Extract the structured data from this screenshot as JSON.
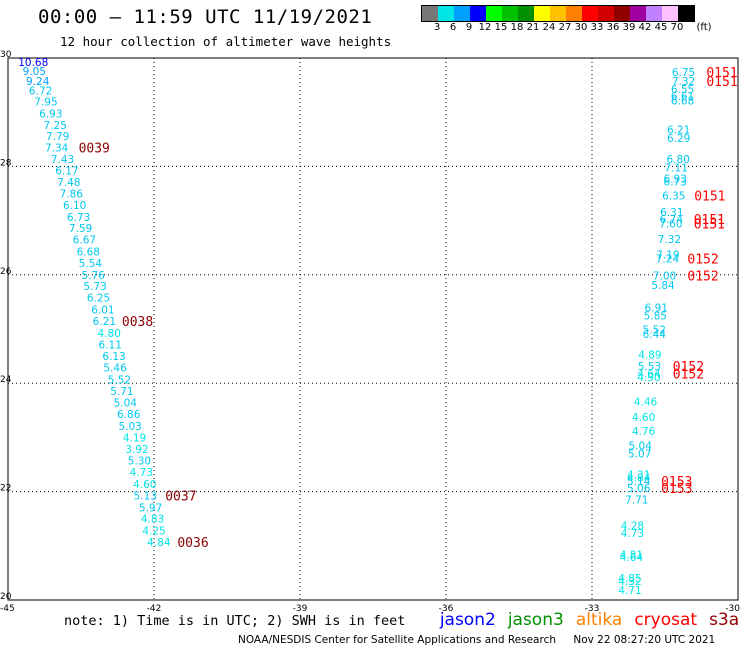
{
  "header": {
    "title": "00:00 — 11:59 UTC 11/19/2021",
    "subtitle": "12 hour collection of altimeter wave heights"
  },
  "legend": {
    "unit": "(ft)",
    "bins": [
      {
        "label": "3",
        "color": "#777777"
      },
      {
        "label": "6",
        "color": "#00e5e5"
      },
      {
        "label": "9",
        "color": "#00a0ff"
      },
      {
        "label": "12",
        "color": "#0000ff"
      },
      {
        "label": "15",
        "color": "#00ff00"
      },
      {
        "label": "18",
        "color": "#00c000"
      },
      {
        "label": "21",
        "color": "#009000"
      },
      {
        "label": "24",
        "color": "#ffff00"
      },
      {
        "label": "27",
        "color": "#ffc000"
      },
      {
        "label": "30",
        "color": "#ff8000"
      },
      {
        "label": "33",
        "color": "#ff0000"
      },
      {
        "label": "36",
        "color": "#d00000"
      },
      {
        "label": "39",
        "color": "#900000"
      },
      {
        "label": "42",
        "color": "#a000a0"
      },
      {
        "label": "45",
        "color": "#c080ff"
      },
      {
        "label": "70",
        "color": "#ffc0ff"
      },
      {
        "label": "",
        "color": "#000000"
      }
    ]
  },
  "chart_data": {
    "type": "scatter",
    "xlim": [
      -45,
      -30
    ],
    "ylim": [
      20,
      30
    ],
    "x_ticks": [
      "-45",
      "-42",
      "-39",
      "-36",
      "-33",
      "-30"
    ],
    "y_ticks": [
      "20",
      "22",
      "24",
      "26",
      "28",
      "30"
    ],
    "y_tick_values": [
      20,
      22,
      24,
      26,
      28,
      30
    ],
    "x_tick_values": [
      -45,
      -42,
      -39,
      -36,
      -33,
      -30
    ],
    "grid": true,
    "left_pass": {
      "points": [
        {
          "lon": -44.79,
          "lat": 29.93,
          "swh": "10.68",
          "color": "#0000ff"
        },
        {
          "lon": -44.7,
          "lat": 29.76,
          "swh": "9.05",
          "color": "#00a0ff"
        },
        {
          "lon": -44.63,
          "lat": 29.58,
          "swh": "9.24",
          "color": "#00a0ff"
        },
        {
          "lon": -44.57,
          "lat": 29.4,
          "swh": "6.72",
          "color": "#00c8f0"
        },
        {
          "lon": -44.46,
          "lat": 29.2,
          "swh": "7.95",
          "color": "#00c8f0"
        },
        {
          "lon": -44.36,
          "lat": 28.98,
          "swh": "6.93",
          "color": "#00c8f0"
        },
        {
          "lon": -44.27,
          "lat": 28.76,
          "swh": "7.25",
          "color": "#00c8f0"
        },
        {
          "lon": -44.22,
          "lat": 28.56,
          "swh": "7.79",
          "color": "#00c8f0"
        },
        {
          "lon": -44.24,
          "lat": 28.35,
          "swh": "7.34",
          "color": "#00c8f0"
        },
        {
          "lon": -44.12,
          "lat": 28.14,
          "swh": "7.43",
          "color": "#00c8f0"
        },
        {
          "lon": -44.03,
          "lat": 27.92,
          "swh": "6.17",
          "color": "#00c8f0"
        },
        {
          "lon": -43.99,
          "lat": 27.71,
          "swh": "7.48",
          "color": "#00c8f0"
        },
        {
          "lon": -43.94,
          "lat": 27.5,
          "swh": "7.86",
          "color": "#00c8f0"
        },
        {
          "lon": -43.87,
          "lat": 27.29,
          "swh": "6.10",
          "color": "#00c8f0"
        },
        {
          "lon": -43.79,
          "lat": 27.07,
          "swh": "6.73",
          "color": "#00c8f0"
        },
        {
          "lon": -43.75,
          "lat": 26.86,
          "swh": "7.59",
          "color": "#00c8f0"
        },
        {
          "lon": -43.67,
          "lat": 26.65,
          "swh": "6.67",
          "color": "#00c8f0"
        },
        {
          "lon": -43.59,
          "lat": 26.43,
          "swh": "6.68",
          "color": "#00c8f0"
        },
        {
          "lon": -43.55,
          "lat": 26.22,
          "swh": "5.54",
          "color": "#00c8f0"
        },
        {
          "lon": -43.49,
          "lat": 26.0,
          "swh": "5.76",
          "color": "#00c8f0"
        },
        {
          "lon": -43.45,
          "lat": 25.79,
          "swh": "5.73",
          "color": "#00c8f0"
        },
        {
          "lon": -43.38,
          "lat": 25.58,
          "swh": "6.25",
          "color": "#00c8f0"
        },
        {
          "lon": -43.29,
          "lat": 25.36,
          "swh": "6.01",
          "color": "#00c8f0"
        },
        {
          "lon": -43.26,
          "lat": 25.15,
          "swh": "6.21",
          "color": "#00c8f0"
        },
        {
          "lon": -43.16,
          "lat": 24.93,
          "swh": "4.80",
          "color": "#00e5e5"
        },
        {
          "lon": -43.14,
          "lat": 24.71,
          "swh": "6.11",
          "color": "#00c8f0"
        },
        {
          "lon": -43.06,
          "lat": 24.5,
          "swh": "6.13",
          "color": "#00c8f0"
        },
        {
          "lon": -43.04,
          "lat": 24.29,
          "swh": "5.46",
          "color": "#00c8f0"
        },
        {
          "lon": -42.95,
          "lat": 24.07,
          "swh": "5.52",
          "color": "#00c8f0"
        },
        {
          "lon": -42.9,
          "lat": 23.86,
          "swh": "5.71",
          "color": "#00c8f0"
        },
        {
          "lon": -42.83,
          "lat": 23.64,
          "swh": "5.04",
          "color": "#00c8f0"
        },
        {
          "lon": -42.76,
          "lat": 23.43,
          "swh": "6.86",
          "color": "#00c8f0"
        },
        {
          "lon": -42.73,
          "lat": 23.21,
          "swh": "5.03",
          "color": "#00c8f0"
        },
        {
          "lon": -42.64,
          "lat": 23.0,
          "swh": "4.19",
          "color": "#00e5e5"
        },
        {
          "lon": -42.59,
          "lat": 22.79,
          "swh": "3.92",
          "color": "#00e5e5"
        },
        {
          "lon": -42.54,
          "lat": 22.57,
          "swh": "5.30",
          "color": "#00c8f0"
        },
        {
          "lon": -42.5,
          "lat": 22.36,
          "swh": "4.73",
          "color": "#00e5e5"
        },
        {
          "lon": -42.43,
          "lat": 22.14,
          "swh": "4.60",
          "color": "#00e5e5"
        },
        {
          "lon": -42.42,
          "lat": 21.93,
          "swh": "5.13",
          "color": "#00c8f0"
        },
        {
          "lon": -42.31,
          "lat": 21.71,
          "swh": "5.97",
          "color": "#00c8f0"
        },
        {
          "lon": -42.27,
          "lat": 21.5,
          "swh": "4.83",
          "color": "#00e5e5"
        },
        {
          "lon": -42.24,
          "lat": 21.28,
          "swh": "4.25",
          "color": "#00e5e5"
        },
        {
          "lon": -42.14,
          "lat": 21.07,
          "swh": "4.84",
          "color": "#00e5e5"
        }
      ],
      "time_labels": [
        {
          "lon": -43.55,
          "lat": 28.35,
          "text": "0039"
        },
        {
          "lon": -42.66,
          "lat": 25.15,
          "text": "0038"
        },
        {
          "lon": -41.77,
          "lat": 21.93,
          "text": "0037"
        },
        {
          "lon": -41.52,
          "lat": 21.07,
          "text": "0036"
        }
      ]
    },
    "right_pass": {
      "points": [
        {
          "lon": -31.36,
          "lat": 29.74,
          "swh": "6.75",
          "color": "#00c8f0"
        },
        {
          "lon": -31.36,
          "lat": 29.58,
          "swh": "7.32",
          "color": "#00c8f0"
        },
        {
          "lon": -31.38,
          "lat": 29.43,
          "swh": "6.55",
          "color": "#00c8f0"
        },
        {
          "lon": -31.38,
          "lat": 29.3,
          "swh": "6.61",
          "color": "#00c8f0"
        },
        {
          "lon": -31.38,
          "lat": 29.22,
          "swh": "6.68",
          "color": "#00c8f0"
        },
        {
          "lon": -31.46,
          "lat": 28.68,
          "swh": "6.21",
          "color": "#00c8f0"
        },
        {
          "lon": -31.46,
          "lat": 28.52,
          "swh": "6.29",
          "color": "#00c8f0"
        },
        {
          "lon": -31.47,
          "lat": 28.14,
          "swh": "6.80",
          "color": "#00c8f0"
        },
        {
          "lon": -31.51,
          "lat": 27.98,
          "swh": "7.11",
          "color": "#00c8f0"
        },
        {
          "lon": -31.53,
          "lat": 27.78,
          "swh": "6.93",
          "color": "#00c8f0"
        },
        {
          "lon": -31.53,
          "lat": 27.72,
          "swh": "6.73",
          "color": "#00c8f0"
        },
        {
          "lon": -31.56,
          "lat": 27.46,
          "swh": "6.35",
          "color": "#00c8f0"
        },
        {
          "lon": -31.6,
          "lat": 27.16,
          "swh": "6.31",
          "color": "#00c8f0"
        },
        {
          "lon": -31.61,
          "lat": 27.03,
          "swh": "6.74",
          "color": "#00c8f0"
        },
        {
          "lon": -31.62,
          "lat": 26.95,
          "swh": "7.60",
          "color": "#00c8f0"
        },
        {
          "lon": -31.65,
          "lat": 26.66,
          "swh": "7.32",
          "color": "#00c8f0"
        },
        {
          "lon": -31.68,
          "lat": 26.37,
          "swh": "7.19",
          "color": "#00c8f0"
        },
        {
          "lon": -31.69,
          "lat": 26.3,
          "swh": "7.24",
          "color": "#00c8f0"
        },
        {
          "lon": -31.75,
          "lat": 25.99,
          "swh": "7.00",
          "color": "#00c8f0"
        },
        {
          "lon": -31.78,
          "lat": 25.81,
          "swh": "5.84",
          "color": "#00c8f0"
        },
        {
          "lon": -31.92,
          "lat": 25.4,
          "swh": "6.91",
          "color": "#00c8f0"
        },
        {
          "lon": -31.94,
          "lat": 25.25,
          "swh": "5.85",
          "color": "#00c8f0"
        },
        {
          "lon": -31.96,
          "lat": 24.99,
          "swh": "5.52",
          "color": "#00c8f0"
        },
        {
          "lon": -31.96,
          "lat": 24.91,
          "swh": "6.44",
          "color": "#00c8f0"
        },
        {
          "lon": -32.05,
          "lat": 24.53,
          "swh": "4.89",
          "color": "#00e5e5"
        },
        {
          "lon": -32.06,
          "lat": 24.32,
          "swh": "5.53",
          "color": "#00c8f0"
        },
        {
          "lon": -32.07,
          "lat": 24.18,
          "swh": "4.64",
          "color": "#00e5e5"
        },
        {
          "lon": -32.07,
          "lat": 24.11,
          "swh": "4.90",
          "color": "#00e5e5"
        },
        {
          "lon": -32.14,
          "lat": 23.66,
          "swh": "4.46",
          "color": "#00e5e5"
        },
        {
          "lon": -32.18,
          "lat": 23.38,
          "swh": "4.60",
          "color": "#00e5e5"
        },
        {
          "lon": -32.18,
          "lat": 23.12,
          "swh": "4.76",
          "color": "#00e5e5"
        },
        {
          "lon": -32.25,
          "lat": 22.85,
          "swh": "5.04",
          "color": "#00c8f0"
        },
        {
          "lon": -32.26,
          "lat": 22.7,
          "swh": "5.07",
          "color": "#00c8f0"
        },
        {
          "lon": -32.28,
          "lat": 22.32,
          "swh": "4.31",
          "color": "#00e5e5"
        },
        {
          "lon": -32.28,
          "lat": 22.26,
          "swh": "4.84",
          "color": "#00e5e5"
        },
        {
          "lon": -32.28,
          "lat": 22.2,
          "swh": "5.14",
          "color": "#00c8f0"
        },
        {
          "lon": -32.28,
          "lat": 22.07,
          "swh": "5.06",
          "color": "#00c8f0"
        },
        {
          "lon": -32.32,
          "lat": 21.85,
          "swh": "7.71",
          "color": "#00c8f0"
        },
        {
          "lon": -32.41,
          "lat": 21.37,
          "swh": "4.28",
          "color": "#00e5e5"
        },
        {
          "lon": -32.41,
          "lat": 21.24,
          "swh": "4.73",
          "color": "#00e5e5"
        },
        {
          "lon": -32.43,
          "lat": 20.84,
          "swh": "4.81",
          "color": "#00e5e5"
        },
        {
          "lon": -32.43,
          "lat": 20.79,
          "swh": "4.64",
          "color": "#00e5e5"
        },
        {
          "lon": -32.46,
          "lat": 20.41,
          "swh": "4.85",
          "color": "#00e5e5"
        },
        {
          "lon": -32.46,
          "lat": 20.35,
          "swh": "4.32",
          "color": "#00e5e5"
        },
        {
          "lon": -32.46,
          "lat": 20.18,
          "swh": "4.71",
          "color": "#00e5e5"
        }
      ],
      "time_labels": [
        {
          "lon": -30.65,
          "lat": 29.74,
          "text": "0151"
        },
        {
          "lon": -30.65,
          "lat": 29.58,
          "text": "0151"
        },
        {
          "lon": -30.9,
          "lat": 27.46,
          "text": "0151"
        },
        {
          "lon": -30.91,
          "lat": 27.03,
          "text": "0151"
        },
        {
          "lon": -30.91,
          "lat": 26.95,
          "text": "0151"
        },
        {
          "lon": -31.04,
          "lat": 26.3,
          "text": "0152"
        },
        {
          "lon": -31.04,
          "lat": 25.99,
          "text": "0152"
        },
        {
          "lon": -31.34,
          "lat": 24.32,
          "text": "0152"
        },
        {
          "lon": -31.34,
          "lat": 24.18,
          "text": "0152"
        },
        {
          "lon": -31.58,
          "lat": 22.2,
          "text": "0153"
        },
        {
          "lon": -31.58,
          "lat": 22.07,
          "text": "0153"
        }
      ]
    }
  },
  "note": {
    "text": "note: 1) Time is in UTC; 2) SWH is in feet",
    "satellites": [
      {
        "name": "jason2",
        "color": "#0000ff"
      },
      {
        "name": "jason3",
        "color": "#009000"
      },
      {
        "name": "altika",
        "color": "#ff8000"
      },
      {
        "name": "cryosat",
        "color": "#ff0000"
      },
      {
        "name": "s3a",
        "color": "#900000"
      }
    ]
  },
  "footer": {
    "credit": "NOAA/NESDIS Center for Satellite Applications and Research",
    "timestamp": "Nov 22 08:27:20 UTC 2021"
  },
  "colors": {
    "time_label_left": "#8b0000",
    "time_label_right": "#ff0000",
    "grid": "#000000"
  }
}
